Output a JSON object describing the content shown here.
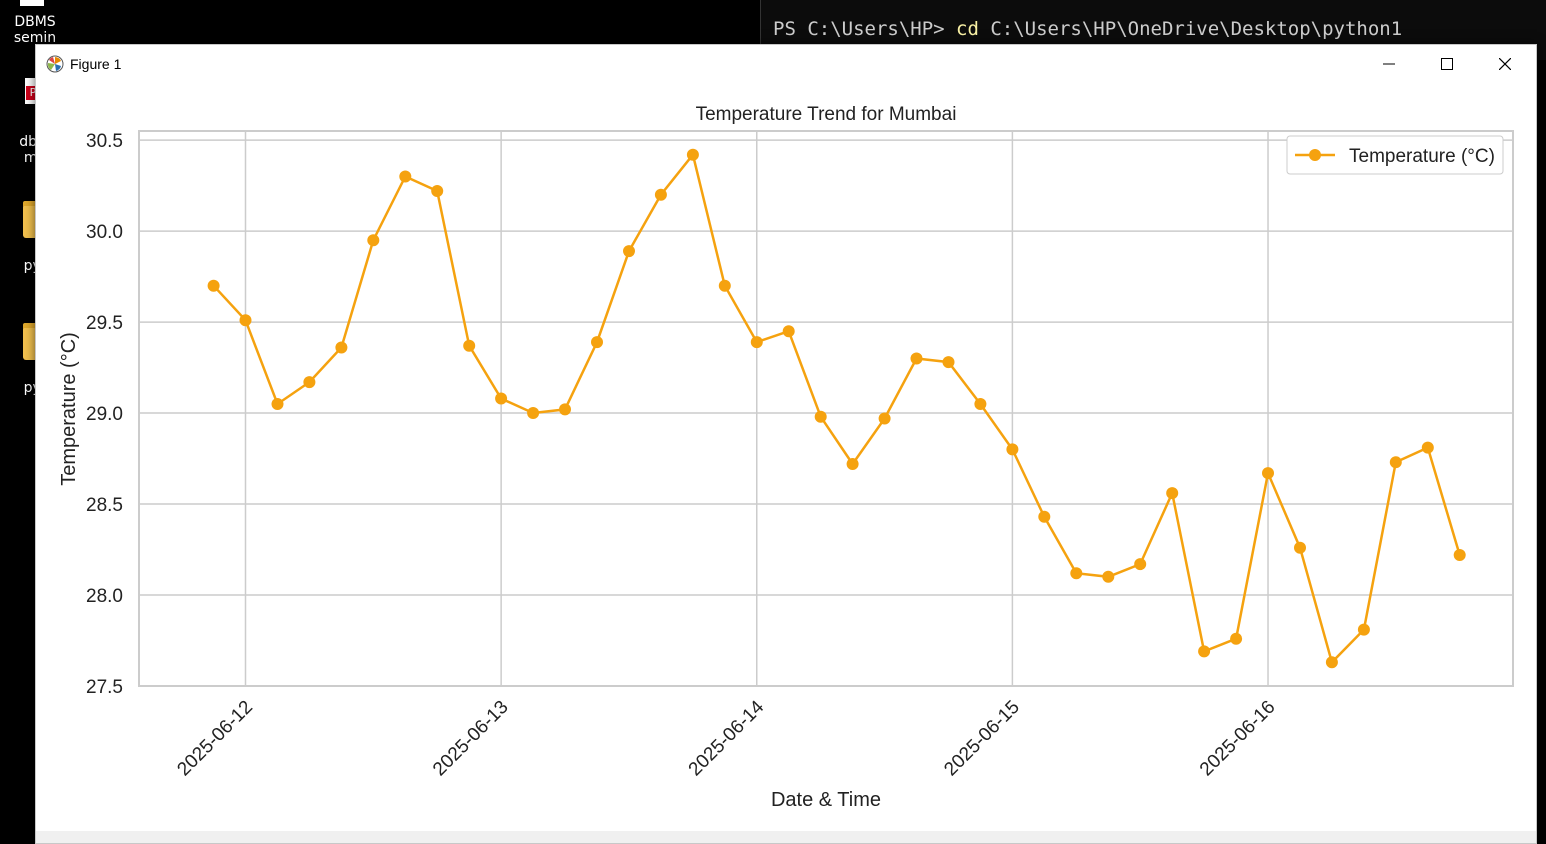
{
  "desktop": {
    "icons": [
      {
        "label_line1": "DBMS",
        "label_line2": "semin"
      },
      {
        "label_line1": "dbm",
        "label_line2": "ma"
      },
      {
        "label_line1": "pyt"
      },
      {
        "label_line1": "pyt"
      }
    ]
  },
  "terminal": {
    "prompt": "PS C:\\Users\\HP> ",
    "command": "cd",
    "argument": " C:\\Users\\HP\\OneDrive\\Desktop\\python1"
  },
  "window": {
    "title": "Figure 1",
    "minimize_icon": "minimize-icon",
    "maximize_icon": "maximize-icon",
    "close_icon": "close-icon"
  },
  "chart_data": {
    "type": "line",
    "title": "Temperature Trend for Mumbai",
    "xlabel": "Date & Time",
    "ylabel": "Temperature (°C)",
    "ylim": [
      27.5,
      30.55
    ],
    "yticks": [
      27.5,
      28.0,
      28.5,
      29.0,
      29.5,
      30.0,
      30.5
    ],
    "ytick_labels": [
      "27.5",
      "28.0",
      "28.5",
      "29.0",
      "29.5",
      "30.0",
      "30.5"
    ],
    "xlim": [
      "2025-06-11 14:00",
      "2025-06-16 23:00"
    ],
    "xticks": [
      "2025-06-12",
      "2025-06-13",
      "2025-06-14",
      "2025-06-15",
      "2025-06-16"
    ],
    "grid": true,
    "legend": {
      "position": "top-right"
    },
    "color": "#f5a20f",
    "series": [
      {
        "name": "Temperature (°C)",
        "x": [
          "2025-06-11 21:00",
          "2025-06-12 00:00",
          "2025-06-12 03:00",
          "2025-06-12 06:00",
          "2025-06-12 09:00",
          "2025-06-12 12:00",
          "2025-06-12 15:00",
          "2025-06-12 18:00",
          "2025-06-12 21:00",
          "2025-06-13 00:00",
          "2025-06-13 03:00",
          "2025-06-13 06:00",
          "2025-06-13 09:00",
          "2025-06-13 12:00",
          "2025-06-13 15:00",
          "2025-06-13 18:00",
          "2025-06-13 21:00",
          "2025-06-14 00:00",
          "2025-06-14 03:00",
          "2025-06-14 06:00",
          "2025-06-14 09:00",
          "2025-06-14 12:00",
          "2025-06-14 15:00",
          "2025-06-14 18:00",
          "2025-06-14 21:00",
          "2025-06-15 00:00",
          "2025-06-15 03:00",
          "2025-06-15 06:00",
          "2025-06-15 09:00",
          "2025-06-15 12:00",
          "2025-06-15 15:00",
          "2025-06-15 18:00",
          "2025-06-15 21:00",
          "2025-06-16 00:00",
          "2025-06-16 03:00",
          "2025-06-16 06:00",
          "2025-06-16 09:00",
          "2025-06-16 12:00",
          "2025-06-16 15:00",
          "2025-06-16 18:00"
        ],
        "values": [
          29.7,
          29.51,
          29.05,
          29.17,
          29.36,
          29.95,
          30.3,
          30.22,
          29.37,
          29.08,
          29.0,
          29.02,
          29.39,
          29.89,
          30.2,
          30.42,
          29.7,
          29.39,
          29.45,
          28.98,
          28.72,
          28.97,
          29.3,
          29.28,
          29.05,
          28.8,
          28.43,
          28.12,
          28.1,
          28.17,
          28.56,
          27.69,
          27.76,
          28.67,
          28.26,
          27.63,
          27.81,
          28.73,
          28.81,
          28.22
        ]
      }
    ]
  }
}
